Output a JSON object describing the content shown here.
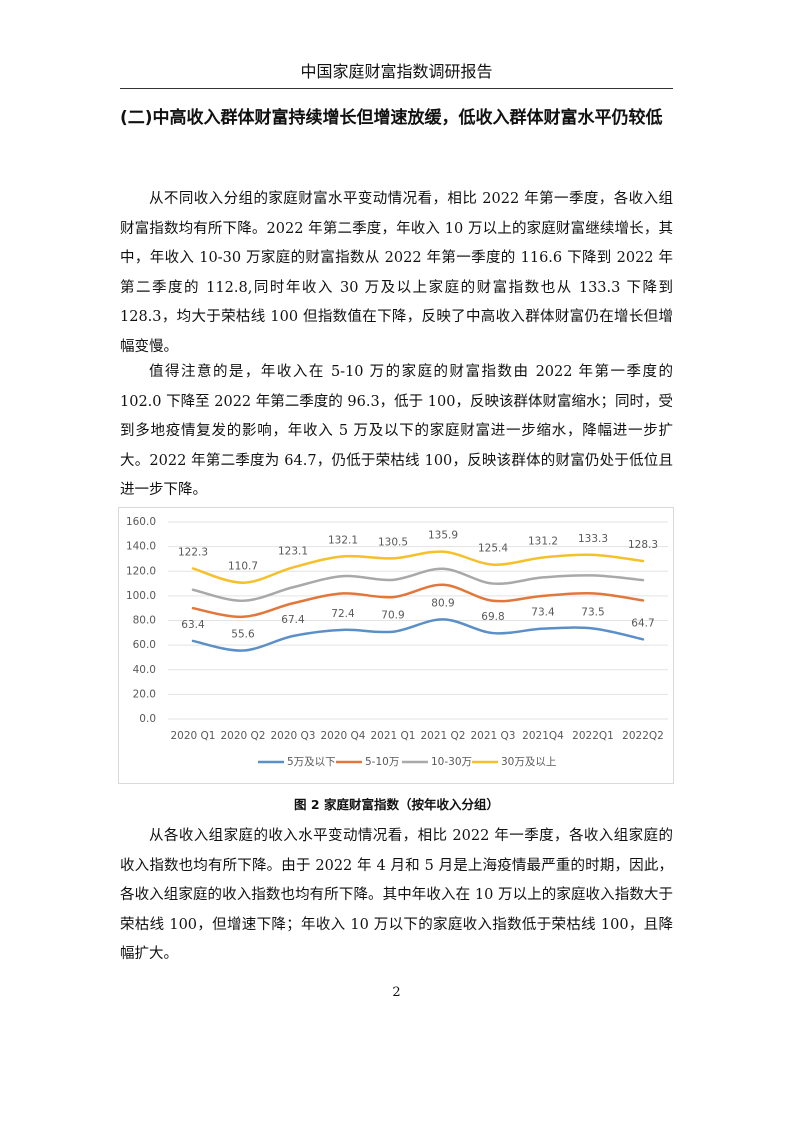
{
  "header": {
    "title": "中国家庭财富指数调研报告"
  },
  "heading": "(二)中高收入群体财富持续增长但增速放缓，低收入群体财富水平仍较低",
  "paragraphs": [
    "从不同收入分组的家庭财富水平变动情况看，相比 2022 年第一季度，各收入组财富指数均有所下降。2022 年第二季度，年收入 10 万以上的家庭财富继续增长，其中，年收入 10-30 万家庭的财富指数从 2022 年第一季度的 116.6 下降到 2022 年第二季度的 112.8,同时年收入 30 万及以上家庭的财富指数也从 133.3 下降到 128.3，均大于荣枯线 100 但指数值在下降，反映了中高收入群体财富仍在增长但增幅变慢。",
    "值得注意的是，年收入在 5-10 万的家庭的财富指数由 2022 年第一季度的 102.0 下降至 2022 年第二季度的 96.3，低于 100，反映该群体财富缩水；同时，受到多地疫情复发的影响，年收入 5 万及以下的家庭财富进一步缩水，降幅进一步扩大。2022 年第二季度为 64.7，仍低于荣枯线 100，反映该群体的财富仍处于低位且进一步下降。",
    "从各收入组家庭的收入水平变动情况看，相比 2022 年一季度，各收入组家庭的收入指数也均有所下降。由于 2022 年 4 月和 5 月是上海疫情最严重的时期，因此，各收入组家庭的收入指数也均有所下降。其中年收入在 10 万以上的家庭收入指数大于荣枯线 100，但增速下降；年收入 10 万以下的家庭收入指数低于荣枯线 100，且降幅扩大。"
  ],
  "chart_data": {
    "type": "line",
    "smooth": true,
    "grid": true,
    "legend": "bottom",
    "categories": [
      "2020 Q1",
      "2020 Q2",
      "2020 Q3",
      "2020 Q4",
      "2021 Q1",
      "2021 Q2",
      "2021 Q3",
      "2021Q4",
      "2022Q1",
      "2022Q2"
    ],
    "series": [
      {
        "name": "5万及以下",
        "color": "#5b8fc7",
        "show_labels": true,
        "values": [
          63.4,
          55.6,
          67.4,
          72.4,
          70.9,
          80.9,
          69.8,
          73.4,
          73.5,
          64.7
        ]
      },
      {
        "name": "5-10万",
        "color": "#e3773a",
        "show_labels": false,
        "values": [
          90,
          83,
          94,
          102,
          99,
          109,
          96,
          100,
          102,
          96.3
        ]
      },
      {
        "name": "10-30万",
        "color": "#a9a9a9",
        "show_labels": false,
        "values": [
          105,
          96,
          107,
          116,
          113,
          122,
          110,
          115,
          116.6,
          112.8
        ]
      },
      {
        "name": "30万及以上",
        "color": "#f5c02a",
        "show_labels": true,
        "values": [
          122.3,
          110.7,
          123.1,
          132.1,
          130.5,
          135.9,
          125.4,
          131.2,
          133.3,
          128.3
        ]
      }
    ],
    "ylim": [
      0,
      160
    ],
    "yticks": [
      {
        "value": 0,
        "label": "0.0"
      },
      {
        "value": 20,
        "label": "20.0"
      },
      {
        "value": 40,
        "label": "40.0"
      },
      {
        "value": 60,
        "label": "60.0"
      },
      {
        "value": 80,
        "label": "80.0"
      },
      {
        "value": 100,
        "label": "100.0"
      },
      {
        "value": 120,
        "label": "120.0"
      },
      {
        "value": 140,
        "label": "140.0"
      },
      {
        "value": 160,
        "label": "160.0"
      }
    ]
  },
  "caption": "图 2 家庭财富指数（按年收入分组）",
  "footer": {
    "page": "2"
  }
}
